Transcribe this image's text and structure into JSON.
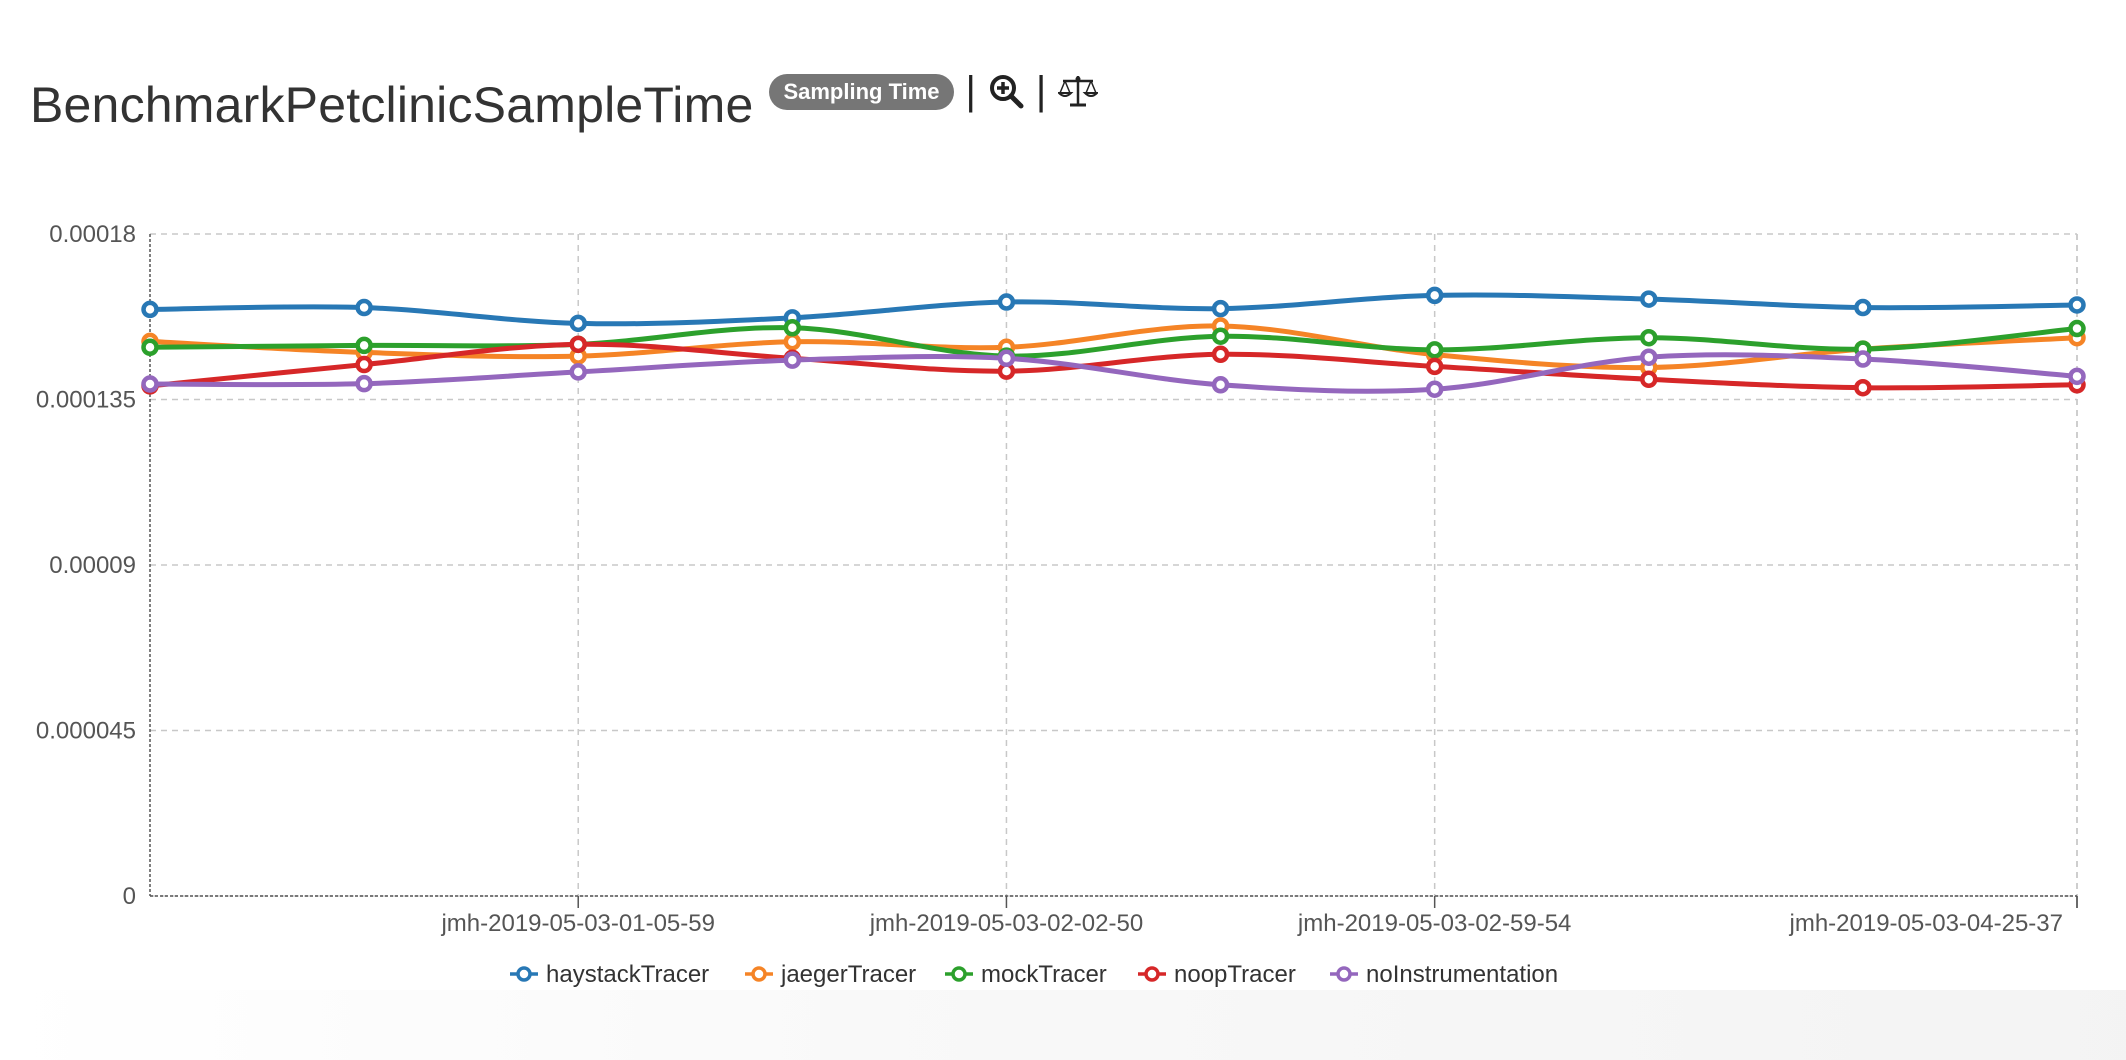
{
  "header": {
    "title": "BenchmarkPetclinicSampleTime",
    "badge": "Sampling Time",
    "separator": "|",
    "icons": [
      "zoom-in-icon",
      "balance-scale-icon"
    ]
  },
  "chart_data": {
    "type": "line",
    "title": "BenchmarkPetclinicSampleTime",
    "x": [
      "",
      "",
      "jmh-2019-05-03-01-05-59",
      "",
      "jmh-2019-05-03-02-02-50",
      "",
      "jmh-2019-05-03-02-59-54",
      "",
      "",
      "jmh-2019-05-03-04-25-37"
    ],
    "x_tick_labels": [
      "jmh-2019-05-03-01-05-59",
      "jmh-2019-05-03-02-02-50",
      "jmh-2019-05-03-02-59-54",
      "jmh-2019-05-03-04-25-37"
    ],
    "y_tick_labels": [
      "0.00018",
      "0.000135",
      "0.00009",
      "0.000045",
      "0"
    ],
    "ylim": [
      0,
      0.00018
    ],
    "grid": true,
    "legend_position": "bottom",
    "series": [
      {
        "name": "haystackTracer",
        "color": "#2878b5",
        "values": [
          0.0001595,
          0.00016,
          0.0001557,
          0.0001572,
          0.0001615,
          0.0001597,
          0.0001633,
          0.0001623,
          0.00016,
          0.0001607
        ]
      },
      {
        "name": "jaegerTracer",
        "color": "#f58426",
        "values": [
          0.0001508,
          0.0001478,
          0.0001468,
          0.0001507,
          0.0001492,
          0.000155,
          0.0001472,
          0.0001437,
          0.0001487,
          0.0001518
        ]
      },
      {
        "name": "mockTracer",
        "color": "#2ca02c",
        "values": [
          0.0001492,
          0.0001497,
          0.00015,
          0.0001545,
          0.0001468,
          0.0001522,
          0.0001485,
          0.0001518,
          0.0001487,
          0.0001543
        ]
      },
      {
        "name": "noopTracer",
        "color": "#d62728",
        "values": [
          0.0001387,
          0.0001445,
          0.00015,
          0.0001462,
          0.0001427,
          0.0001473,
          0.000144,
          0.0001405,
          0.0001382,
          0.000139
        ]
      },
      {
        "name": "noInstrumentation",
        "color": "#9467bd",
        "values": [
          0.0001392,
          0.0001393,
          0.0001425,
          0.0001457,
          0.0001462,
          0.000139,
          0.0001378,
          0.0001465,
          0.000146,
          0.0001413
        ]
      }
    ]
  }
}
